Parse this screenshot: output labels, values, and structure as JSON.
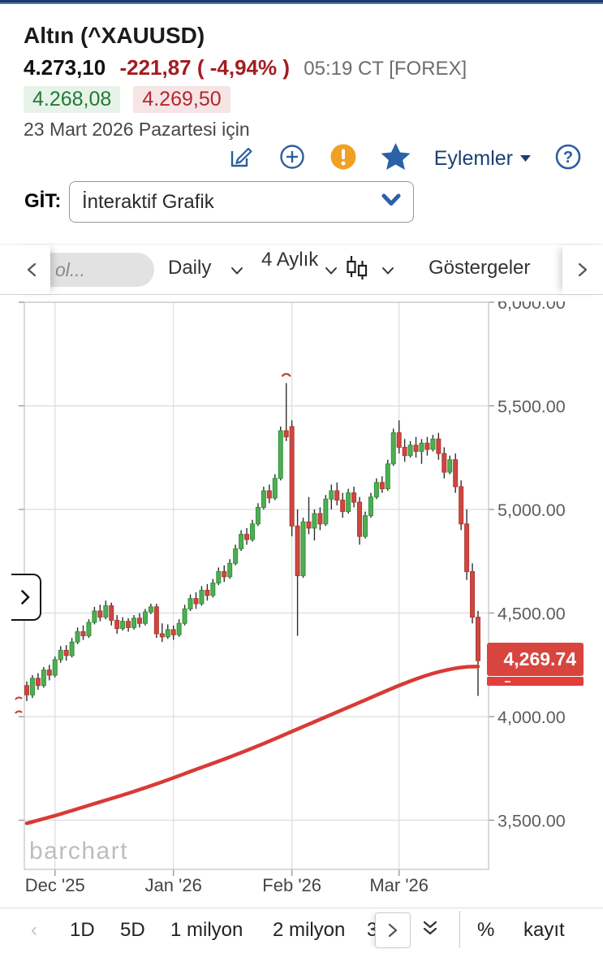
{
  "header": {
    "title": "Altın (^XAUUSD)",
    "last_price": "4.273,10",
    "change": "-221,87 ( -4,94% )",
    "session": "05:19 CT [FOREX]",
    "bid": "4.268,08",
    "ask": "4.269,50",
    "date_note": "23 Mart 2026 Pazartesi için",
    "actions_label": "Eylemler"
  },
  "goto": {
    "label": "GİT:",
    "value": "İnteraktif Grafik"
  },
  "chart_toolbar": {
    "symbol_placeholder": "ol...",
    "frequency": "Daily",
    "range": "4 Aylık",
    "indicators_label": "Göstergeler"
  },
  "chart_data": {
    "type": "candlestick",
    "symbol": "^XAUUSD",
    "frequency": "Daily",
    "last_price_label": "4,269.74",
    "watermark": "barchart",
    "y_ticks": [
      "6,000.00",
      "5,500.00",
      "5,000.00",
      "4,500.00",
      "4,000.00",
      "3,500.00"
    ],
    "y_values": [
      6000,
      5500,
      5000,
      4500,
      4000,
      3500
    ],
    "x_ticks": [
      {
        "label": "Dec '25",
        "index": 5
      },
      {
        "label": "Jan '26",
        "index": 26
      },
      {
        "label": "Feb '26",
        "index": 47
      },
      {
        "label": "Mar '26",
        "index": 66
      }
    ],
    "candles": [
      [
        4150,
        4170,
        4075,
        4105
      ],
      [
        4105,
        4200,
        4090,
        4185
      ],
      [
        4185,
        4210,
        4130,
        4150
      ],
      [
        4150,
        4240,
        4140,
        4225
      ],
      [
        4225,
        4250,
        4175,
        4200
      ],
      [
        4200,
        4290,
        4190,
        4275
      ],
      [
        4275,
        4340,
        4260,
        4320
      ],
      [
        4320,
        4345,
        4270,
        4295
      ],
      [
        4295,
        4380,
        4285,
        4360
      ],
      [
        4360,
        4430,
        4350,
        4410
      ],
      [
        4410,
        4440,
        4370,
        4390
      ],
      [
        4390,
        4470,
        4380,
        4455
      ],
      [
        4455,
        4530,
        4445,
        4510
      ],
      [
        4510,
        4540,
        4460,
        4480
      ],
      [
        4480,
        4560,
        4470,
        4535
      ],
      [
        4535,
        4550,
        4440,
        4465
      ],
      [
        4465,
        4490,
        4400,
        4425
      ],
      [
        4425,
        4480,
        4415,
        4460
      ],
      [
        4460,
        4475,
        4410,
        4430
      ],
      [
        4430,
        4490,
        4420,
        4475
      ],
      [
        4475,
        4500,
        4430,
        4450
      ],
      [
        4450,
        4520,
        4440,
        4505
      ],
      [
        4505,
        4545,
        4495,
        4530
      ],
      [
        4530,
        4545,
        4380,
        4400
      ],
      [
        4400,
        4450,
        4360,
        4385
      ],
      [
        4385,
        4445,
        4375,
        4420
      ],
      [
        4420,
        4440,
        4370,
        4395
      ],
      [
        4395,
        4470,
        4385,
        4450
      ],
      [
        4450,
        4540,
        4440,
        4520
      ],
      [
        4520,
        4590,
        4510,
        4570
      ],
      [
        4570,
        4600,
        4520,
        4545
      ],
      [
        4545,
        4630,
        4535,
        4610
      ],
      [
        4610,
        4640,
        4560,
        4585
      ],
      [
        4585,
        4665,
        4575,
        4645
      ],
      [
        4645,
        4720,
        4635,
        4700
      ],
      [
        4700,
        4730,
        4650,
        4675
      ],
      [
        4675,
        4760,
        4665,
        4740
      ],
      [
        4740,
        4830,
        4730,
        4810
      ],
      [
        4810,
        4900,
        4800,
        4880
      ],
      [
        4880,
        4910,
        4830,
        4855
      ],
      [
        4855,
        4950,
        4845,
        4930
      ],
      [
        4930,
        5030,
        4920,
        5010
      ],
      [
        5010,
        5110,
        5000,
        5090
      ],
      [
        5090,
        5120,
        5030,
        5055
      ],
      [
        5055,
        5170,
        5045,
        5150
      ],
      [
        5150,
        5400,
        5140,
        5380
      ],
      [
        5380,
        5610,
        5330,
        5350
      ],
      [
        5400,
        5430,
        4870,
        4920
      ],
      [
        4920,
        5000,
        4390,
        4680
      ],
      [
        4680,
        4960,
        4670,
        4940
      ],
      [
        4940,
        5060,
        4880,
        4910
      ],
      [
        4910,
        5000,
        4850,
        4980
      ],
      [
        4980,
        5010,
        4900,
        4930
      ],
      [
        4930,
        5070,
        4920,
        5050
      ],
      [
        5050,
        5120,
        5000,
        5090
      ],
      [
        5090,
        5130,
        5020,
        5045
      ],
      [
        5045,
        5080,
        4960,
        4990
      ],
      [
        4990,
        5100,
        4980,
        5080
      ],
      [
        5080,
        5110,
        5010,
        5035
      ],
      [
        5035,
        5060,
        4830,
        4870
      ],
      [
        4870,
        4990,
        4860,
        4970
      ],
      [
        4970,
        5080,
        4960,
        5060
      ],
      [
        5060,
        5150,
        5050,
        5130
      ],
      [
        5130,
        5160,
        5080,
        5100
      ],
      [
        5100,
        5240,
        5090,
        5220
      ],
      [
        5220,
        5390,
        5210,
        5370
      ],
      [
        5370,
        5430,
        5270,
        5300
      ],
      [
        5300,
        5340,
        5230,
        5260
      ],
      [
        5260,
        5330,
        5250,
        5310
      ],
      [
        5310,
        5350,
        5250,
        5280
      ],
      [
        5280,
        5340,
        5220,
        5320
      ],
      [
        5320,
        5350,
        5260,
        5290
      ],
      [
        5290,
        5360,
        5280,
        5340
      ],
      [
        5340,
        5370,
        5240,
        5270
      ],
      [
        5270,
        5300,
        5150,
        5180
      ],
      [
        5180,
        5260,
        5170,
        5240
      ],
      [
        5240,
        5270,
        5080,
        5110
      ],
      [
        5110,
        5140,
        4900,
        4930
      ],
      [
        4930,
        5000,
        4660,
        4700
      ],
      [
        4700,
        4740,
        4450,
        4480
      ],
      [
        4480,
        4510,
        4100,
        4270
      ]
    ],
    "ma_line": {
      "name": "moving-average",
      "points": [
        [
          0,
          3485
        ],
        [
          6,
          3530
        ],
        [
          12,
          3580
        ],
        [
          18,
          3630
        ],
        [
          24,
          3685
        ],
        [
          30,
          3745
        ],
        [
          36,
          3805
        ],
        [
          42,
          3870
        ],
        [
          48,
          3940
        ],
        [
          54,
          4010
        ],
        [
          60,
          4080
        ],
        [
          66,
          4150
        ],
        [
          71,
          4200
        ],
        [
          75,
          4228
        ],
        [
          78,
          4240
        ],
        [
          80,
          4242
        ]
      ]
    },
    "annotations": {
      "spike_marker_index": 46,
      "edge_marks": [
        {
          "x": 22,
          "y": 861
        },
        {
          "x": 22,
          "y": 878
        }
      ]
    },
    "colors": {
      "up": "#4daf53",
      "up_border": "#35913c",
      "down": "#cc4840",
      "down_border": "#b33730",
      "wick": "#2e2e2e",
      "ma": "#d93a35",
      "grid": "#dcdcdc",
      "box": "#d8453e"
    }
  },
  "bottom_toolbar": {
    "prev_label": "‹",
    "ranges": [
      "1D",
      "5D",
      "1 milyon",
      "2 milyon",
      "3"
    ],
    "percent_label": "%",
    "records_label": "kayıt"
  }
}
